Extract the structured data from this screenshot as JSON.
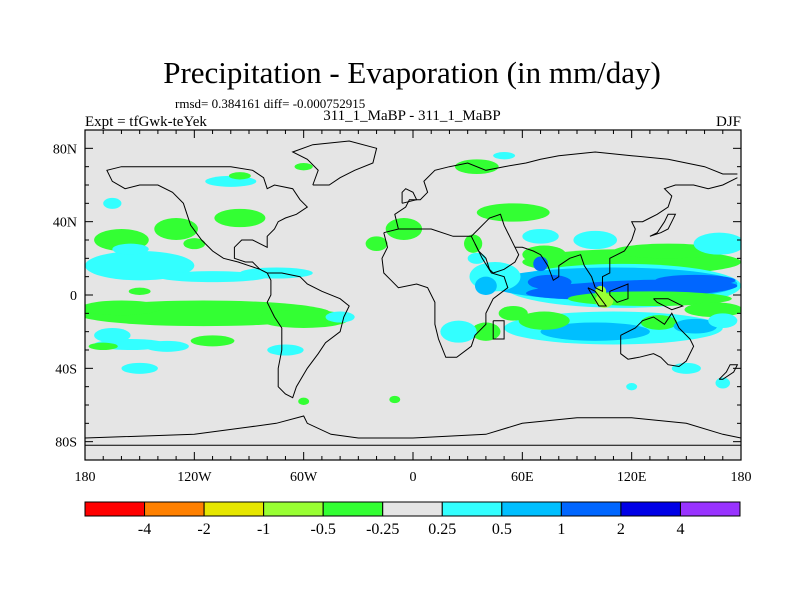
{
  "chart_data": {
    "type": "contour-map",
    "title": "Precipitation - Evaporation (in mm/day)",
    "stats_text": "rmsd= 0.384161 diff= -0.000752915",
    "subtitle": "311_1_MaBP - 311_1_MaBP",
    "left_label": "Expt = tfGwk-teYek",
    "right_label": "DJF",
    "x_axis": {
      "range": [
        -180,
        180
      ],
      "ticks": [
        {
          "value": -180,
          "label": "180"
        },
        {
          "value": -120,
          "label": "120W"
        },
        {
          "value": -60,
          "label": "60W"
        },
        {
          "value": 0,
          "label": "0"
        },
        {
          "value": 60,
          "label": "60E"
        },
        {
          "value": 120,
          "label": "120E"
        },
        {
          "value": 180,
          "label": "180"
        }
      ]
    },
    "y_axis": {
      "range": [
        -90,
        90
      ],
      "ticks": [
        {
          "value": 80,
          "label": "80N"
        },
        {
          "value": 40,
          "label": "40N"
        },
        {
          "value": 0,
          "label": "0"
        },
        {
          "value": -40,
          "label": "40S"
        },
        {
          "value": -80,
          "label": "80S"
        }
      ]
    },
    "colorbar": {
      "colors": [
        "#ff0000",
        "#ff8000",
        "#e6e600",
        "#99ff33",
        "#33ff33",
        "#e5e5e5",
        "#33ffff",
        "#00bfff",
        "#0066ff",
        "#0000e6",
        "#9933ff"
      ],
      "labels": [
        "-4",
        "-2",
        "-1",
        "-0.5",
        "-0.25",
        "0.25",
        "0.5",
        "1",
        "2",
        "4"
      ]
    },
    "features": [
      {
        "name": "cyan-band-west-pacific",
        "lon": [
          -178,
          -125
        ],
        "lat": [
          10,
          22
        ],
        "level": 0.5
      },
      {
        "name": "green-band-itcz-west",
        "lon": [
          -178,
          -45
        ],
        "lat": [
          -20,
          -4
        ],
        "level": -0.5
      },
      {
        "name": "blue-band-east-itcz",
        "lon": [
          60,
          178
        ],
        "lat": [
          2,
          10
        ],
        "level": 2
      },
      {
        "name": "cyan-band-south-indian",
        "lon": [
          30,
          178
        ],
        "lat": [
          -28,
          -10
        ],
        "level": 0.5
      },
      {
        "name": "green-band-north-indian",
        "lon": [
          90,
          178
        ],
        "lat": [
          14,
          26
        ],
        "level": -0.5
      }
    ]
  }
}
